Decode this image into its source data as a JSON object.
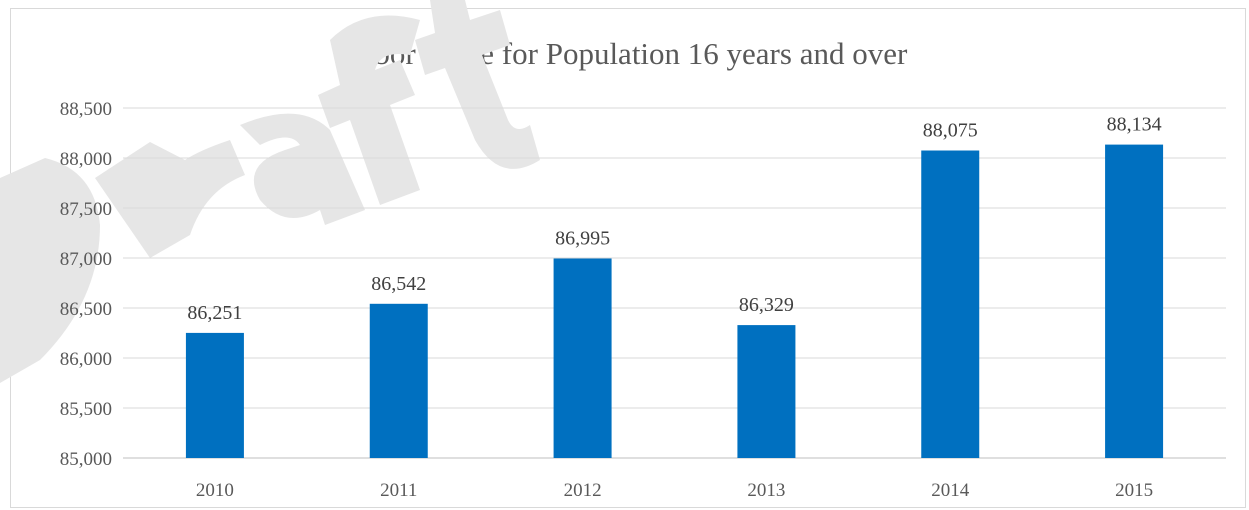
{
  "chart_data": {
    "type": "bar",
    "title": "Labor Force for Population 16 years and over",
    "categories": [
      "2010",
      "2011",
      "2012",
      "2013",
      "2014",
      "2015"
    ],
    "values": [
      86251,
      86542,
      86995,
      86329,
      88075,
      88134
    ],
    "data_labels": [
      "86,251",
      "86,542",
      "86,995",
      "86,329",
      "88,075",
      "88,134"
    ],
    "y_ticks": [
      85000,
      85500,
      86000,
      86500,
      87000,
      87500,
      88000,
      88500
    ],
    "y_tick_labels": [
      "85,000",
      "85,500",
      "86,000",
      "86,500",
      "87,000",
      "87,500",
      "88,000",
      "88,500"
    ],
    "ylim": [
      85000,
      88500
    ],
    "xlabel": "",
    "ylabel": "",
    "grid": true,
    "legend": "none",
    "bar_color": "#0070c0",
    "grid_color": "#d9d9d9"
  },
  "watermark": {
    "text": "Draft",
    "color": "#e8e8e8"
  }
}
